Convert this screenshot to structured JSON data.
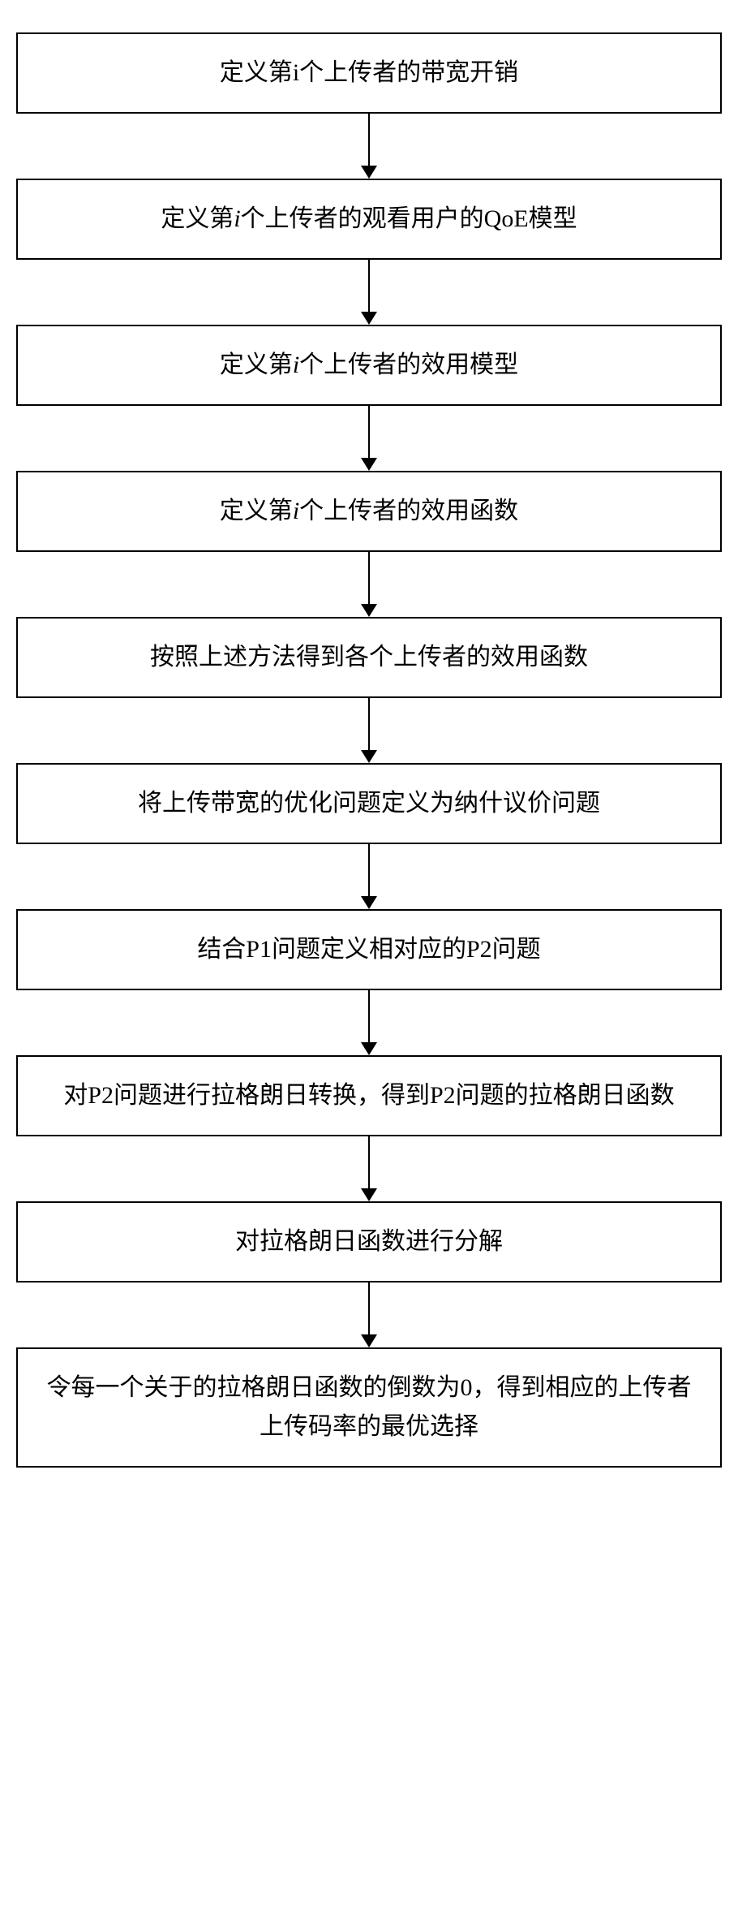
{
  "flowchart": {
    "type": "flowchart",
    "direction": "vertical",
    "background_color": "#ffffff",
    "box_border_color": "#000000",
    "box_border_width": 2,
    "arrow_color": "#000000",
    "arrow_line_width": 2,
    "arrow_head_size": 16,
    "font_size": 30,
    "font_family": "SimSun",
    "text_color": "#000000",
    "box_width_ratio": 1.0,
    "arrow_height": 80,
    "box_padding": 24,
    "steps": [
      {
        "id": "step-1",
        "parts": [
          {
            "text": "定义第i个上传者的带宽开销",
            "italic": false
          }
        ]
      },
      {
        "id": "step-2",
        "parts": [
          {
            "text": "定义第",
            "italic": false
          },
          {
            "text": "i",
            "italic": true
          },
          {
            "text": "个上传者的观看用户的QoE模型",
            "italic": false
          }
        ]
      },
      {
        "id": "step-3",
        "parts": [
          {
            "text": "定义第",
            "italic": false
          },
          {
            "text": "i",
            "italic": true
          },
          {
            "text": "个上传者的效用模型",
            "italic": false
          }
        ]
      },
      {
        "id": "step-4",
        "parts": [
          {
            "text": "定义第",
            "italic": false
          },
          {
            "text": "i",
            "italic": true
          },
          {
            "text": "个上传者的效用函数",
            "italic": false
          }
        ]
      },
      {
        "id": "step-5",
        "parts": [
          {
            "text": "按照上述方法得到各个上传者的效用函数",
            "italic": false
          }
        ]
      },
      {
        "id": "step-6",
        "parts": [
          {
            "text": "将上传带宽的优化问题定义为纳什议价问题",
            "italic": false
          }
        ]
      },
      {
        "id": "step-7",
        "parts": [
          {
            "text": "结合P1问题定义相对应的P2问题",
            "italic": false
          }
        ]
      },
      {
        "id": "step-8",
        "parts": [
          {
            "text": "对P2问题进行拉格朗日转换，得到P2问题的拉格朗日函数",
            "italic": false
          }
        ]
      },
      {
        "id": "step-9",
        "parts": [
          {
            "text": "对拉格朗日函数进行分解",
            "italic": false
          }
        ]
      },
      {
        "id": "step-10",
        "parts": [
          {
            "text": "令每一个关于的拉格朗日函数的倒数为0，得到相应的上传者上传码率的最优选择",
            "italic": false
          }
        ]
      }
    ]
  }
}
